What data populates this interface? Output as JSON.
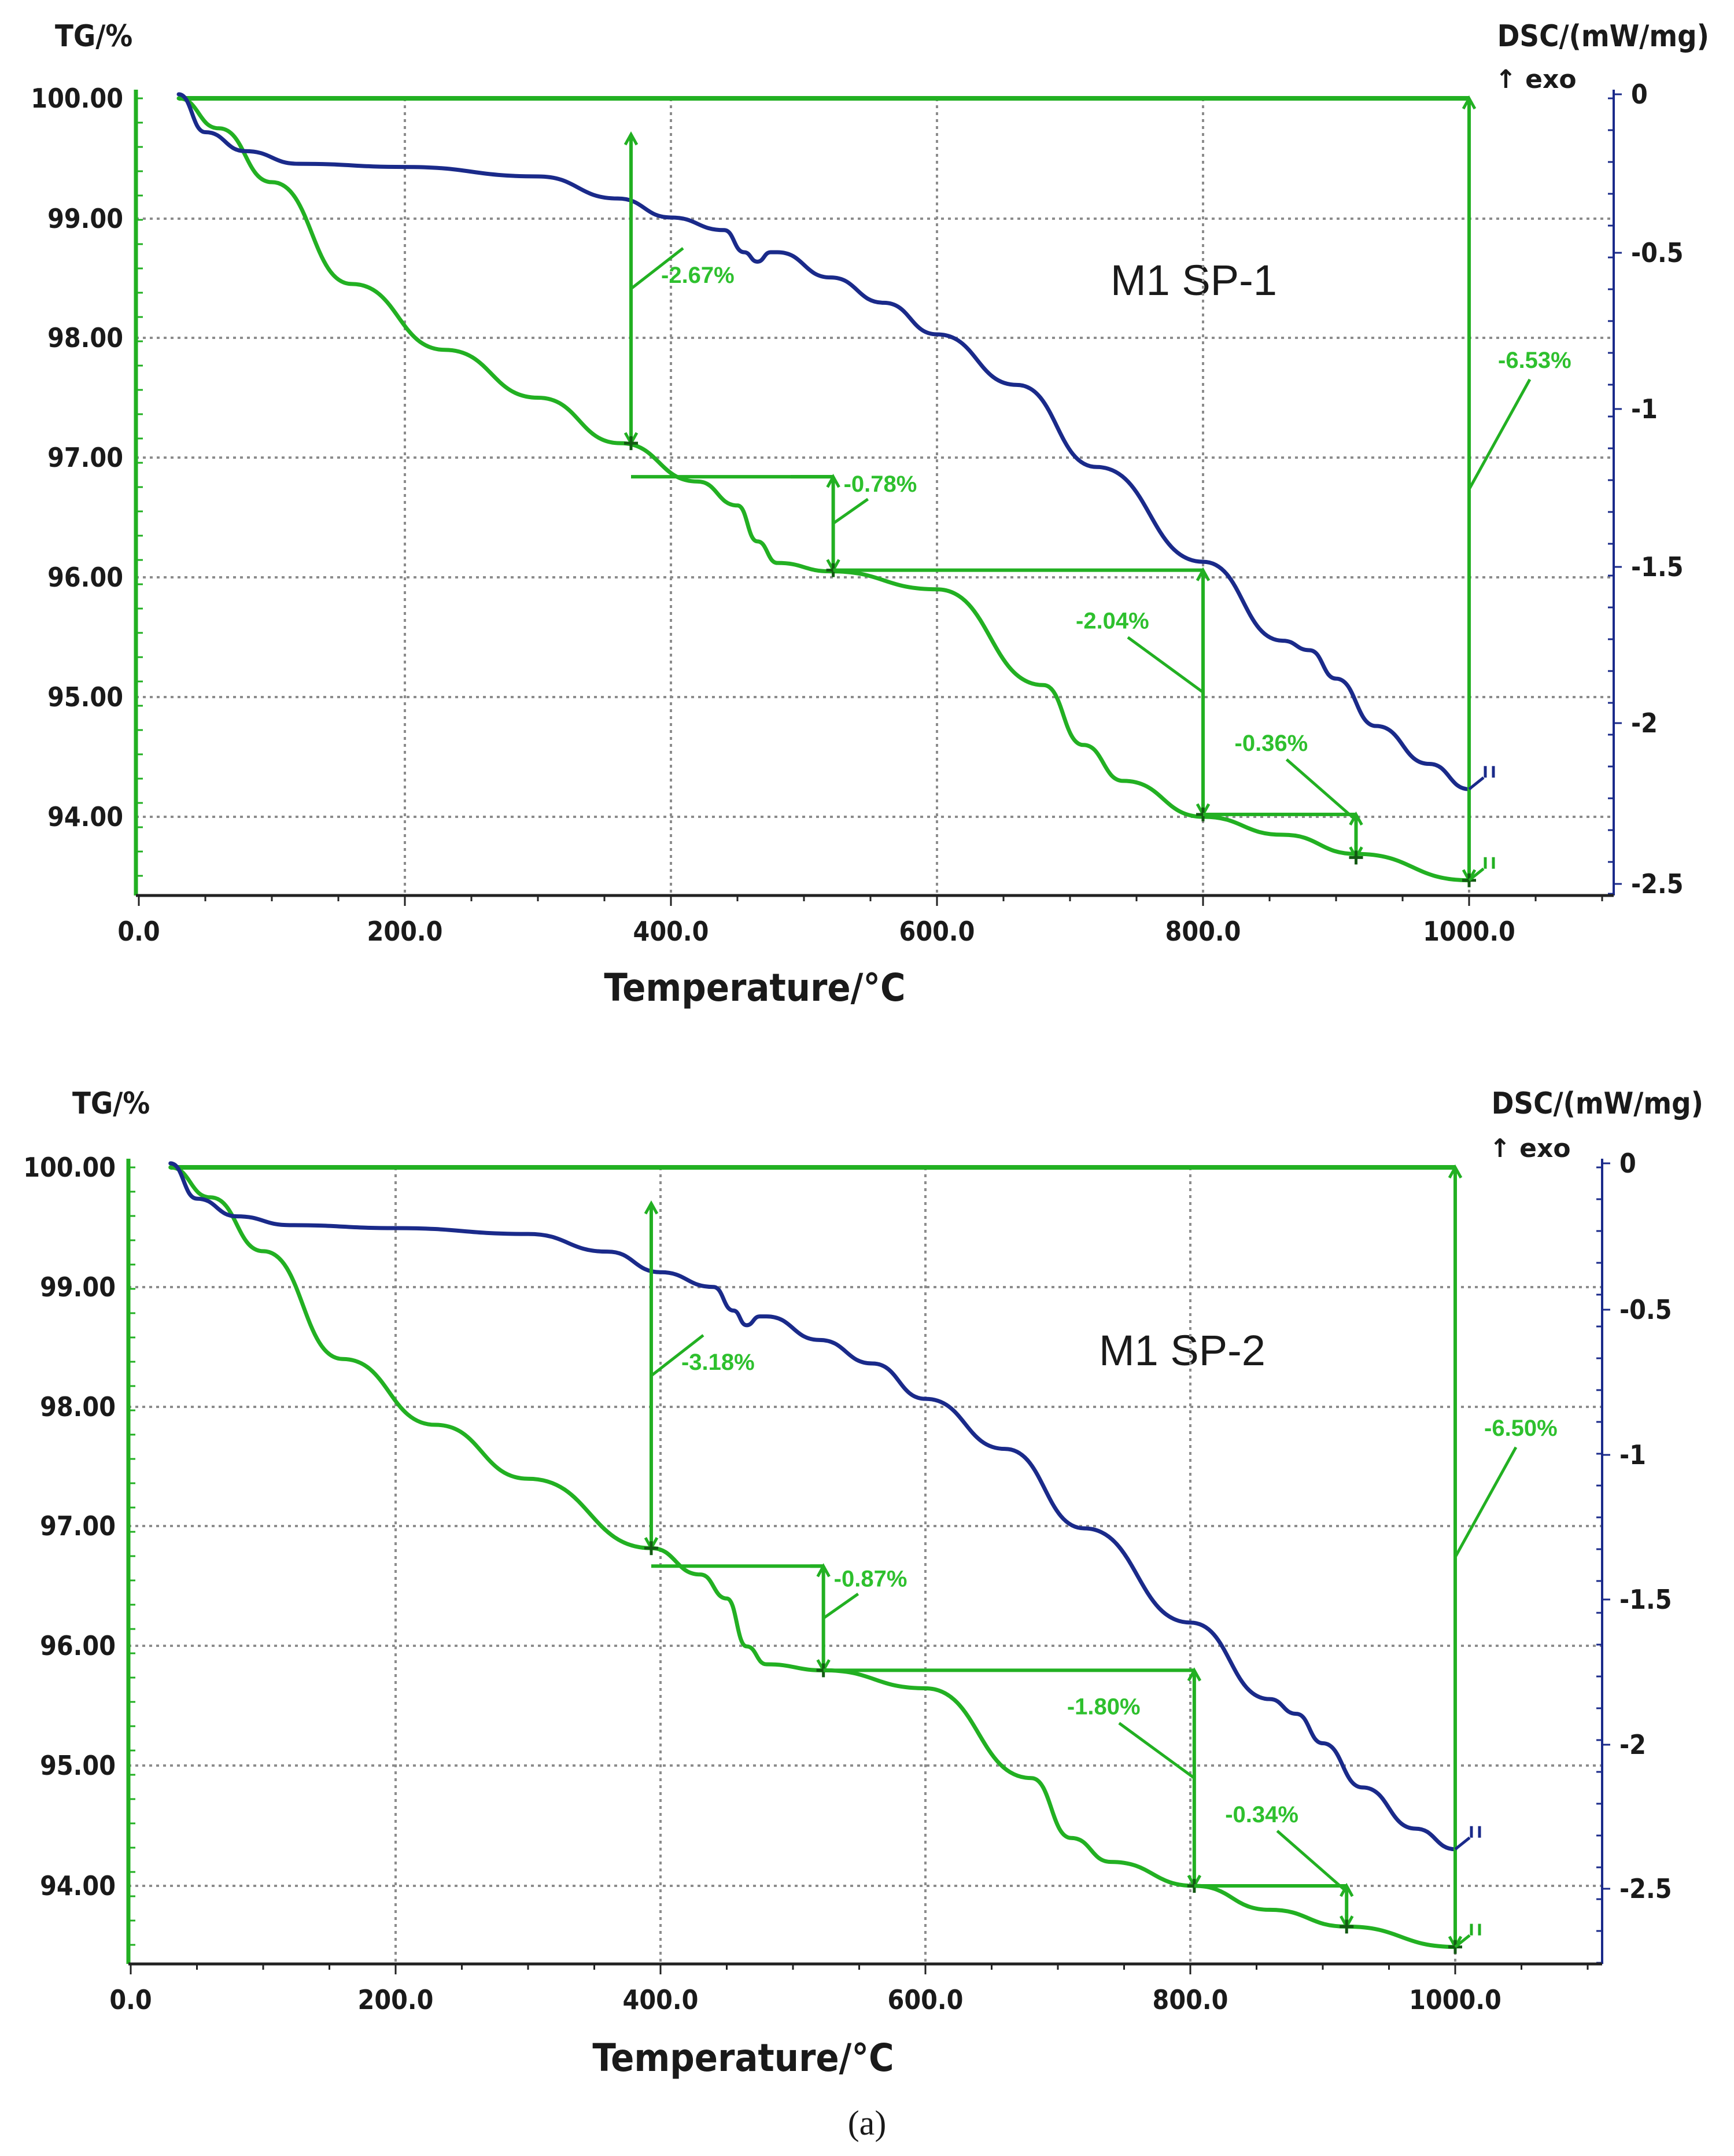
{
  "chart_data": [
    {
      "type": "line",
      "title": "M1 SP-1",
      "xlabel": "Temperature/°C",
      "ylabel_left": "TG/%",
      "ylabel_right": "DSC/(mW/mg)",
      "exo_label": "↑ exo",
      "xlim": [
        0,
        1100
      ],
      "ylim_left": [
        93.5,
        100.0
      ],
      "ylim_right": [
        -2.5,
        0
      ],
      "x_ticks": [
        "0.0",
        "200.0",
        "400.0",
        "600.0",
        "800.0",
        "1000.0"
      ],
      "y_left_ticks": [
        "100.00",
        "99.00",
        "98.00",
        "97.00",
        "96.00",
        "95.00",
        "94.00"
      ],
      "y_right_ticks": [
        "0",
        "-0.5",
        "-1",
        "-1.5",
        "-2",
        "-2.5"
      ],
      "series": [
        {
          "name": "TG",
          "axis": "left",
          "color": "#22b022",
          "x": [
            30,
            60,
            100,
            160,
            230,
            300,
            362,
            420,
            450,
            465,
            480,
            520,
            600,
            680,
            710,
            740,
            800,
            860,
            915,
            1000
          ],
          "y": [
            100.0,
            99.75,
            99.3,
            98.45,
            97.9,
            97.5,
            97.12,
            96.8,
            96.6,
            96.3,
            96.12,
            96.05,
            95.9,
            95.1,
            94.6,
            94.3,
            94.0,
            93.85,
            93.69,
            93.47
          ]
        },
        {
          "name": "DSC",
          "axis": "right",
          "color": "#1a2a8a",
          "x": [
            30,
            50,
            80,
            120,
            200,
            300,
            360,
            400,
            440,
            455,
            465,
            475,
            480,
            520,
            560,
            600,
            660,
            720,
            800,
            860,
            880,
            900,
            930,
            970,
            1000
          ],
          "y": [
            0,
            -0.12,
            -0.18,
            -0.22,
            -0.23,
            -0.26,
            -0.33,
            -0.39,
            -0.43,
            -0.5,
            -0.53,
            -0.5,
            -0.5,
            -0.58,
            -0.66,
            -0.76,
            -0.92,
            -1.18,
            -1.48,
            -1.73,
            -1.76,
            -1.85,
            -2.0,
            -2.12,
            -2.2
          ]
        }
      ],
      "annotations": [
        {
          "label": "-2.67%",
          "x": 370,
          "y_from": 99.7,
          "y_to": 97.12
        },
        {
          "label": "-0.78%",
          "x": 522,
          "y_from": 96.84,
          "y_to": 96.06
        },
        {
          "label": "-2.04%",
          "x": 800,
          "y_from": 96.06,
          "y_to": 94.02
        },
        {
          "label": "-0.36%",
          "x": 915,
          "y_from": 94.02,
          "y_to": 93.66
        },
        {
          "label": "-6.53%",
          "x": 1000,
          "y_from": 100.0,
          "y_to": 93.47
        }
      ]
    },
    {
      "type": "line",
      "title": "M1 SP-2",
      "xlabel": "Temperature/°C",
      "ylabel_left": "TG/%",
      "ylabel_right": "DSC/(mW/mg)",
      "exo_label": "↑ exo",
      "xlim": [
        0,
        1100
      ],
      "ylim_left": [
        93.5,
        100.0
      ],
      "ylim_right": [
        -2.7,
        0
      ],
      "x_ticks": [
        "0.0",
        "200.0",
        "400.0",
        "600.0",
        "800.0",
        "1000.0"
      ],
      "y_left_ticks": [
        "100.00",
        "99.00",
        "98.00",
        "97.00",
        "96.00",
        "95.00",
        "94.00"
      ],
      "y_right_ticks": [
        "0",
        "-0.5",
        "-1",
        "-1.5",
        "-2",
        "-2.5"
      ],
      "series": [
        {
          "name": "TG",
          "axis": "left",
          "color": "#22b022",
          "x": [
            30,
            60,
            100,
            160,
            230,
            300,
            393,
            430,
            450,
            465,
            480,
            523,
            600,
            680,
            710,
            740,
            803,
            860,
            918,
            1000
          ],
          "y": [
            100.0,
            99.75,
            99.3,
            98.4,
            97.85,
            97.4,
            96.82,
            96.6,
            96.4,
            96.0,
            95.85,
            95.8,
            95.65,
            94.9,
            94.4,
            94.2,
            94.0,
            93.8,
            93.66,
            93.49
          ]
        },
        {
          "name": "DSC",
          "axis": "right",
          "color": "#1a2a8a",
          "x": [
            30,
            50,
            80,
            120,
            200,
            300,
            360,
            400,
            440,
            455,
            465,
            475,
            480,
            520,
            560,
            600,
            660,
            720,
            800,
            860,
            880,
            900,
            930,
            970,
            1000
          ],
          "y": [
            0,
            -0.12,
            -0.18,
            -0.21,
            -0.22,
            -0.24,
            -0.3,
            -0.37,
            -0.42,
            -0.5,
            -0.55,
            -0.52,
            -0.52,
            -0.6,
            -0.68,
            -0.8,
            -0.97,
            -1.24,
            -1.56,
            -1.82,
            -1.87,
            -1.97,
            -2.12,
            -2.26,
            -2.33
          ]
        }
      ],
      "annotations": [
        {
          "label": "-3.18%",
          "x": 393,
          "y_from": 99.7,
          "y_to": 96.82
        },
        {
          "label": "-0.87%",
          "x": 523,
          "y_from": 96.67,
          "y_to": 95.8
        },
        {
          "label": "-1.80%",
          "x": 803,
          "y_from": 95.8,
          "y_to": 94.0
        },
        {
          "label": "-0.34%",
          "x": 918,
          "y_from": 94.0,
          "y_to": 93.66
        },
        {
          "label": "-6.50%",
          "x": 1000,
          "y_from": 100.0,
          "y_to": 93.49
        }
      ]
    }
  ],
  "caption": "(a)"
}
